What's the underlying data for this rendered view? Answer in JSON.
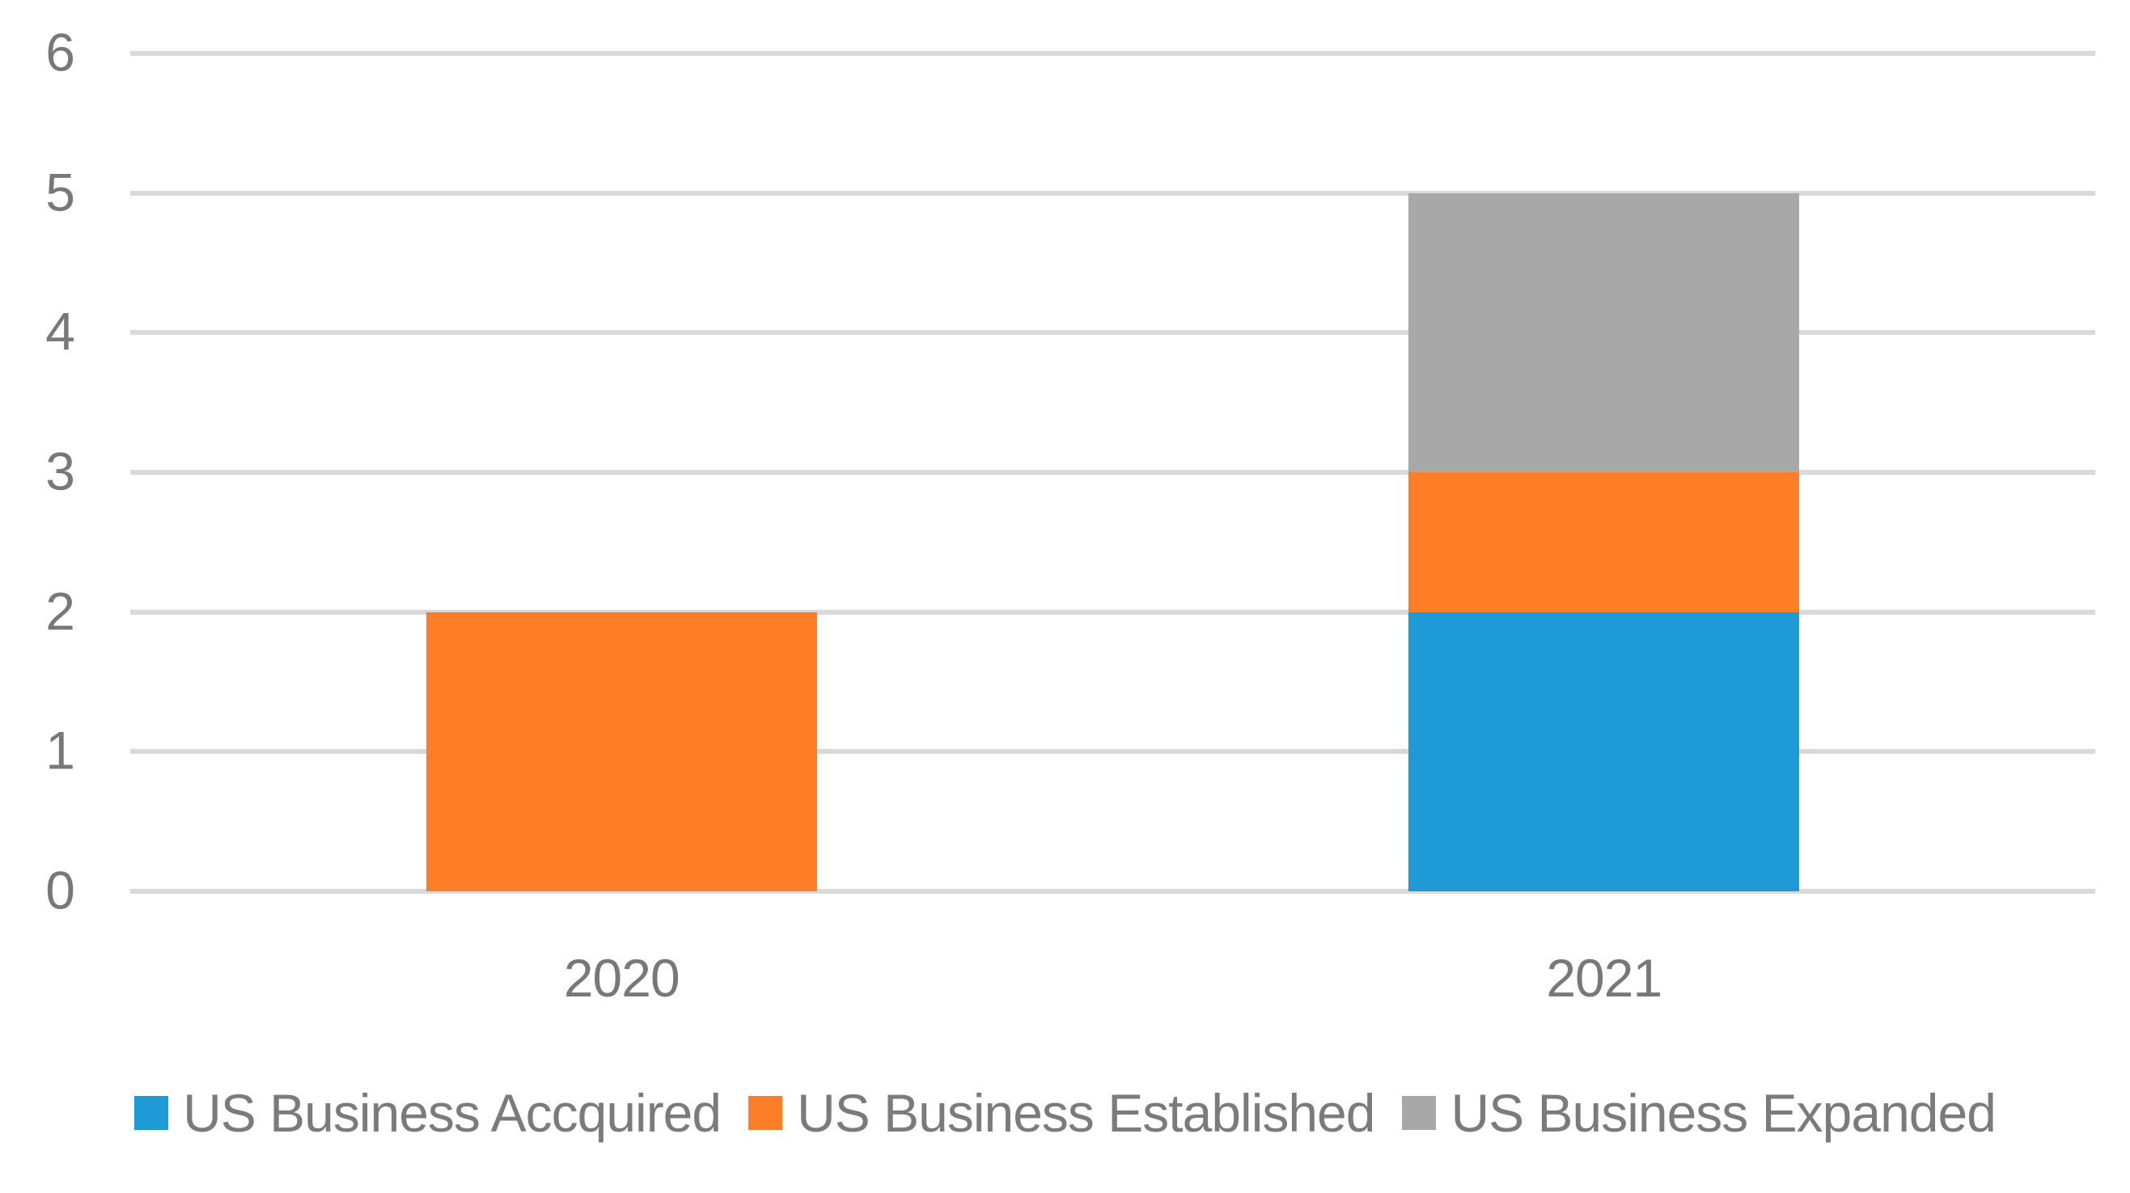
{
  "chart_data": {
    "type": "bar",
    "stacked": true,
    "title": "",
    "xlabel": "",
    "ylabel": "",
    "categories": [
      "2020",
      "2021"
    ],
    "series": [
      {
        "name": "US Business Accquired",
        "color": "#1E9BD7",
        "values": [
          0,
          2
        ]
      },
      {
        "name": "US Business Established",
        "color": "#FD7E27",
        "values": [
          2,
          1
        ]
      },
      {
        "name": "US Business Expanded",
        "color": "#A8A8A8",
        "values": [
          0,
          2
        ]
      }
    ],
    "ylim": [
      0,
      6
    ],
    "yticks": [
      "0",
      "1",
      "2",
      "3",
      "4",
      "5",
      "6"
    ],
    "grid": "horizontal-only",
    "legend_position": "bottom-center",
    "colors": {
      "gridline": "#D9D9D9",
      "axis_text": "#787878",
      "legend_text": "#7B7B7B",
      "background": "#FFFFFF"
    }
  }
}
